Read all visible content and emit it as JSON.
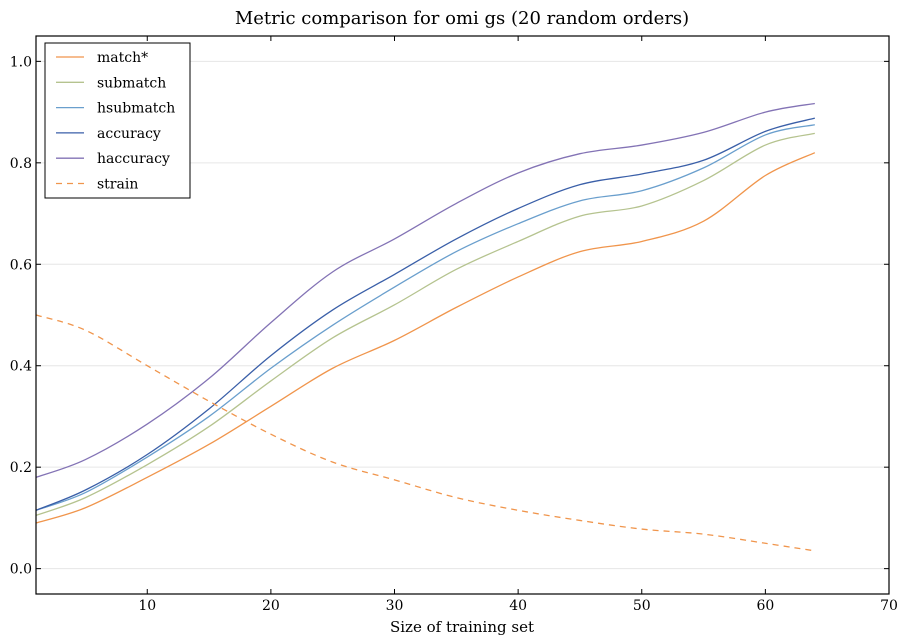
{
  "chart_data": {
    "type": "line",
    "title": "Metric comparison for omi gs (20 random orders)",
    "xlabel": "Size of training set",
    "ylabel": "",
    "xlim": [
      1,
      70
    ],
    "ylim": [
      -0.05,
      1.05
    ],
    "xticks": [
      10,
      20,
      30,
      40,
      50,
      60,
      70
    ],
    "yticks": [
      0.0,
      0.2,
      0.4,
      0.6,
      0.8,
      1.0
    ],
    "xtick_labels": [
      "10",
      "20",
      "30",
      "40",
      "50",
      "60",
      "70"
    ],
    "ytick_labels": [
      "0.0",
      "0.2",
      "0.4",
      "0.6",
      "0.8",
      "1.0"
    ],
    "grid": "horizontal",
    "legend_position": "top-left",
    "x": [
      1,
      5,
      10,
      15,
      20,
      25,
      30,
      35,
      40,
      45,
      50,
      55,
      60,
      64
    ],
    "series": [
      {
        "name": "match*",
        "color": "#f0954c",
        "style": "solid",
        "values": [
          0.09,
          0.12,
          0.18,
          0.245,
          0.32,
          0.395,
          0.45,
          0.515,
          0.575,
          0.625,
          0.645,
          0.685,
          0.775,
          0.82
        ]
      },
      {
        "name": "submatch",
        "color": "#b5c38f",
        "style": "solid",
        "values": [
          0.105,
          0.14,
          0.205,
          0.28,
          0.37,
          0.455,
          0.52,
          0.59,
          0.645,
          0.695,
          0.715,
          0.765,
          0.835,
          0.858
        ]
      },
      {
        "name": "hsubmatch",
        "color": "#6a9fcd",
        "style": "solid",
        "values": [
          0.115,
          0.15,
          0.22,
          0.3,
          0.395,
          0.48,
          0.555,
          0.625,
          0.68,
          0.725,
          0.745,
          0.79,
          0.855,
          0.875
        ]
      },
      {
        "name": "accuracy",
        "color": "#3a5fa8",
        "style": "solid",
        "values": [
          0.115,
          0.155,
          0.225,
          0.315,
          0.42,
          0.51,
          0.58,
          0.65,
          0.71,
          0.757,
          0.778,
          0.805,
          0.862,
          0.888
        ]
      },
      {
        "name": "haccuracy",
        "color": "#8373b5",
        "style": "solid",
        "values": [
          0.18,
          0.215,
          0.285,
          0.375,
          0.485,
          0.585,
          0.65,
          0.72,
          0.78,
          0.818,
          0.835,
          0.86,
          0.9,
          0.917
        ]
      },
      {
        "name": "strain",
        "color": "#f0954c",
        "style": "dashed",
        "values": [
          0.5,
          0.47,
          0.4,
          0.33,
          0.265,
          0.21,
          0.175,
          0.14,
          0.115,
          0.095,
          0.078,
          0.068,
          0.05,
          0.035
        ]
      }
    ]
  }
}
